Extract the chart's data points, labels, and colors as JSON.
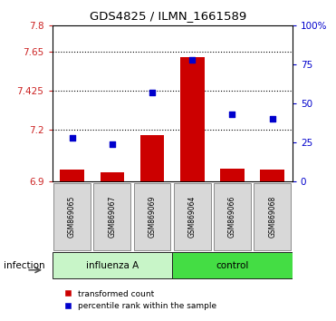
{
  "title": "GDS4825 / ILMN_1661589",
  "samples": [
    "GSM869065",
    "GSM869067",
    "GSM869069",
    "GSM869064",
    "GSM869066",
    "GSM869068"
  ],
  "transformed_count": [
    6.97,
    6.955,
    7.17,
    7.62,
    6.975,
    6.97
  ],
  "percentile_rank": [
    28,
    24,
    57,
    78,
    43,
    40
  ],
  "groups": [
    {
      "label": "influenza A",
      "indices": [
        0,
        1,
        2
      ],
      "bg_color": "#c8f5c8",
      "color": "#44dd44"
    },
    {
      "label": "control",
      "indices": [
        3,
        4,
        5
      ],
      "bg_color": "#44dd44",
      "color": "#44dd44"
    }
  ],
  "factor_label": "infection",
  "ylim_left": [
    6.9,
    7.8
  ],
  "ylim_right": [
    0,
    100
  ],
  "yticks_left": [
    6.9,
    7.2,
    7.425,
    7.65,
    7.8
  ],
  "ytick_labels_left": [
    "6.9",
    "7.2",
    "7.425",
    "7.65",
    "7.8"
  ],
  "yticks_right": [
    0,
    25,
    50,
    75,
    100
  ],
  "ytick_labels_right": [
    "0",
    "25",
    "50",
    "75",
    "100%"
  ],
  "bar_color": "#cc0000",
  "dot_color": "#0000cc",
  "bar_bottom": 6.9,
  "grid_ticks": [
    7.2,
    7.425,
    7.65
  ],
  "legend": [
    {
      "color": "#cc0000",
      "label": "transformed count"
    },
    {
      "color": "#0000cc",
      "label": "percentile rank within the sample"
    }
  ]
}
